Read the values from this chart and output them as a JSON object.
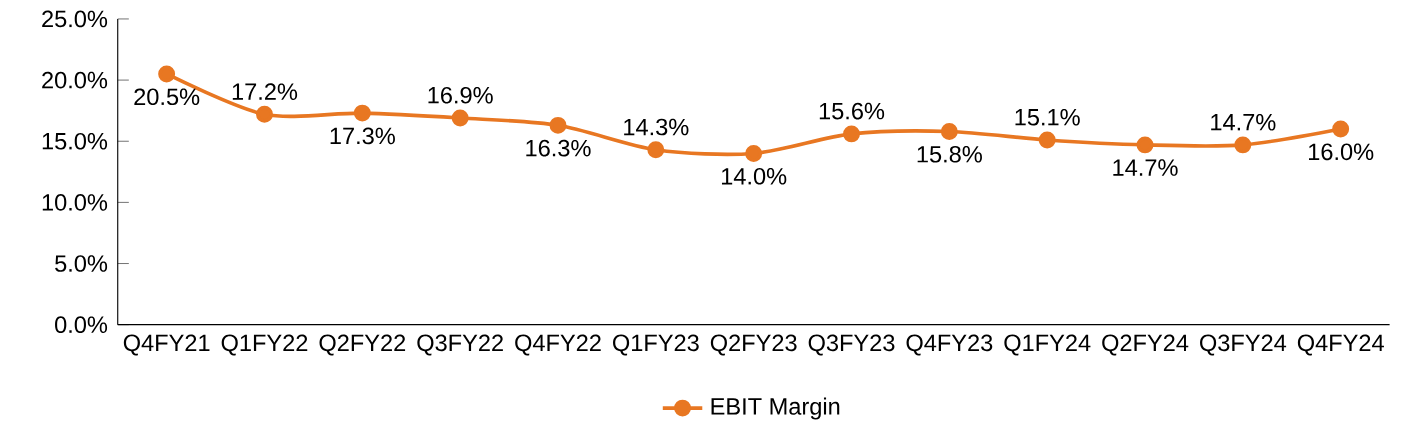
{
  "chart_data": {
    "type": "line",
    "categories": [
      "Q4FY21",
      "Q1FY22",
      "Q2FY22",
      "Q3FY22",
      "Q4FY22",
      "Q1FY23",
      "Q2FY23",
      "Q3FY23",
      "Q4FY23",
      "Q1FY24",
      "Q2FY24",
      "Q3FY24",
      "Q4FY24"
    ],
    "series": [
      {
        "name": "EBIT Margin",
        "color": "#e87722",
        "values": [
          20.5,
          17.2,
          17.3,
          16.9,
          16.3,
          14.3,
          14.0,
          15.6,
          15.8,
          15.1,
          14.7,
          14.7,
          16.0
        ],
        "value_labels": [
          "20.5%",
          "17.2%",
          "17.3%",
          "16.9%",
          "16.3%",
          "14.3%",
          "14.0%",
          "15.6%",
          "15.8%",
          "15.1%",
          "14.7%",
          "14.7%",
          "16.0%"
        ]
      }
    ],
    "ylim": [
      0,
      25
    ],
    "yticks": [
      {
        "value": 0,
        "label": "0.0%"
      },
      {
        "value": 5,
        "label": "5.0%"
      },
      {
        "value": 10,
        "label": "10.0%"
      },
      {
        "value": 15,
        "label": "15.0%"
      },
      {
        "value": 20,
        "label": "20.0%"
      },
      {
        "value": 25,
        "label": "25.0%"
      }
    ],
    "grid": false,
    "legend": "bottom",
    "marker": "circle",
    "line_style": "solid"
  }
}
